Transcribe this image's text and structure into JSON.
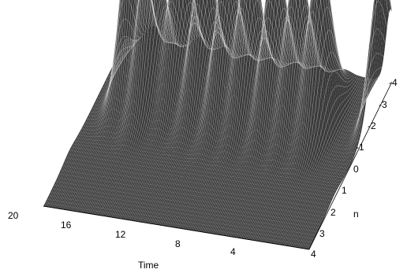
{
  "chart_data": {
    "type": "surface3d",
    "xlabel": "Time",
    "ylabel": "n",
    "zlabel": "",
    "x_ticks": [
      "20",
      "16",
      "12",
      "8",
      "4"
    ],
    "y_ticks": [
      "4",
      "3",
      "2",
      "1",
      "0",
      "-1",
      "-2",
      "-3",
      "-4"
    ],
    "x_range": [
      0,
      20
    ],
    "y_range": [
      -4,
      4
    ],
    "surface_color": "#3a3a3a",
    "mesh_color": "#ffffff",
    "peaks": [
      {
        "time": 17.9,
        "n": -2.0,
        "height": 1.05
      },
      {
        "time": 16.2,
        "n": -1.5,
        "height": 0.95
      },
      {
        "time": 14.4,
        "n": -2.0,
        "height": 0.82
      },
      {
        "time": 12.5,
        "n": -1.8,
        "height": 0.82
      },
      {
        "time": 10.6,
        "n": -1.6,
        "height": 0.8
      },
      {
        "time": 8.9,
        "n": -1.6,
        "height": 0.86
      },
      {
        "time": 7.0,
        "n": -1.6,
        "height": 0.84
      },
      {
        "time": 5.3,
        "n": -1.6,
        "height": 0.82
      },
      {
        "time": 3.6,
        "n": -1.6,
        "height": 0.88
      },
      {
        "time": 0.1,
        "n": -3.0,
        "height": 0.7
      }
    ]
  }
}
